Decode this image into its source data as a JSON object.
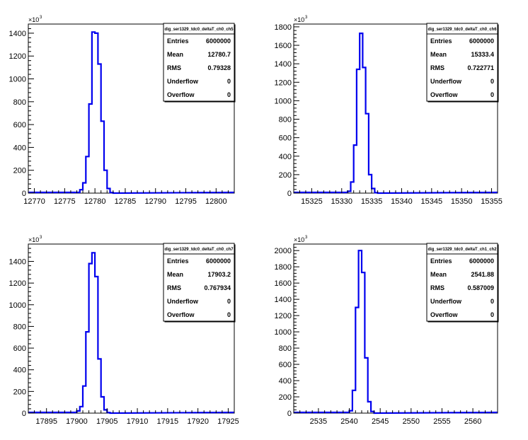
{
  "chart_data": [
    {
      "type": "histogram",
      "stats_title": "dig_ser1329_tdc0_deltaT_ch0_ch5",
      "stats": [
        {
          "key": "Entries",
          "value": "6000000"
        },
        {
          "key": "Mean",
          "value": "12780.7"
        },
        {
          "key": "RMS",
          "value": "0.79328"
        },
        {
          "key": "Underflow",
          "value": "0"
        },
        {
          "key": "Overflow",
          "value": "0"
        }
      ],
      "xlim": [
        12769,
        12803
      ],
      "ylim": [
        0,
        1480
      ],
      "x_ticks": [
        "12770",
        "12775",
        "12780",
        "12785",
        "12790",
        "12795",
        "12800"
      ],
      "y_ticks": [
        "0",
        "200",
        "400",
        "600",
        "800",
        "1000",
        "1200",
        "1400"
      ],
      "y_multiplier": "×10",
      "y_multiplier_exp": "3",
      "bin_width": 0.5,
      "bins": [
        {
          "x": 12777.5,
          "y": 30
        },
        {
          "x": 12778.0,
          "y": 90
        },
        {
          "x": 12778.5,
          "y": 320
        },
        {
          "x": 12779.0,
          "y": 780
        },
        {
          "x": 12779.5,
          "y": 1410
        },
        {
          "x": 12780.0,
          "y": 1400
        },
        {
          "x": 12780.5,
          "y": 1130
        },
        {
          "x": 12781.0,
          "y": 630
        },
        {
          "x": 12781.5,
          "y": 200
        },
        {
          "x": 12782.0,
          "y": 40
        },
        {
          "x": 12782.5,
          "y": 5
        }
      ]
    },
    {
      "type": "histogram",
      "stats_title": "dig_ser1329_tdc0_deltaT_ch0_ch6",
      "stats": [
        {
          "key": "Entries",
          "value": "6000000"
        },
        {
          "key": "Mean",
          "value": "15333.4"
        },
        {
          "key": "RMS",
          "value": "0.722771"
        },
        {
          "key": "Underflow",
          "value": "0"
        },
        {
          "key": "Overflow",
          "value": "0"
        }
      ],
      "xlim": [
        15322,
        15356
      ],
      "ylim": [
        0,
        1830
      ],
      "x_ticks": [
        "15325",
        "15330",
        "15335",
        "15340",
        "15345",
        "15350",
        "15355"
      ],
      "y_ticks": [
        "0",
        "200",
        "400",
        "600",
        "800",
        "1000",
        "1200",
        "1400",
        "1600",
        "1800"
      ],
      "y_multiplier": "×10",
      "y_multiplier_exp": "3",
      "bin_width": 0.5,
      "bins": [
        {
          "x": 15331.0,
          "y": 20
        },
        {
          "x": 15331.5,
          "y": 120
        },
        {
          "x": 15332.0,
          "y": 520
        },
        {
          "x": 15332.5,
          "y": 1340
        },
        {
          "x": 15333.0,
          "y": 1730
        },
        {
          "x": 15333.5,
          "y": 1360
        },
        {
          "x": 15334.0,
          "y": 860
        },
        {
          "x": 15334.5,
          "y": 200
        },
        {
          "x": 15335.0,
          "y": 50
        },
        {
          "x": 15335.5,
          "y": 5
        }
      ]
    },
    {
      "type": "histogram",
      "stats_title": "dig_ser1329_tdc0_deltaT_ch0_ch7",
      "stats": [
        {
          "key": "Entries",
          "value": "6000000"
        },
        {
          "key": "Mean",
          "value": "17903.2"
        },
        {
          "key": "RMS",
          "value": "0.767934"
        },
        {
          "key": "Underflow",
          "value": "0"
        },
        {
          "key": "Overflow",
          "value": "0"
        }
      ],
      "xlim": [
        17892,
        17926
      ],
      "ylim": [
        0,
        1560
      ],
      "x_ticks": [
        "17895",
        "17900",
        "17905",
        "17910",
        "17915",
        "17920",
        "17925"
      ],
      "y_ticks": [
        "0",
        "200",
        "400",
        "600",
        "800",
        "1000",
        "1200",
        "1400"
      ],
      "y_multiplier": "×10",
      "y_multiplier_exp": "3",
      "bin_width": 0.5,
      "bins": [
        {
          "x": 17900.0,
          "y": 20
        },
        {
          "x": 17900.5,
          "y": 60
        },
        {
          "x": 17901.0,
          "y": 250
        },
        {
          "x": 17901.5,
          "y": 750
        },
        {
          "x": 17902.0,
          "y": 1380
        },
        {
          "x": 17902.5,
          "y": 1480
        },
        {
          "x": 17903.0,
          "y": 1260
        },
        {
          "x": 17903.5,
          "y": 500
        },
        {
          "x": 17904.0,
          "y": 150
        },
        {
          "x": 17904.5,
          "y": 30
        },
        {
          "x": 17905.0,
          "y": 5
        }
      ]
    },
    {
      "type": "histogram",
      "stats_title": "dig_ser1329_tdc0_deltaT_ch1_ch2",
      "stats": [
        {
          "key": "Entries",
          "value": "6000000"
        },
        {
          "key": "Mean",
          "value": "2541.88"
        },
        {
          "key": "RMS",
          "value": "0.587009"
        },
        {
          "key": "Underflow",
          "value": "0"
        },
        {
          "key": "Overflow",
          "value": "0"
        }
      ],
      "xlim": [
        2531,
        2564
      ],
      "ylim": [
        0,
        2080
      ],
      "x_ticks": [
        "2535",
        "2540",
        "2545",
        "2550",
        "2555",
        "2560"
      ],
      "y_ticks": [
        "0",
        "200",
        "400",
        "600",
        "800",
        "1000",
        "1200",
        "1400",
        "1600",
        "1800",
        "2000"
      ],
      "y_multiplier": "×10",
      "y_multiplier_exp": "3",
      "bin_width": 0.5,
      "bins": [
        {
          "x": 2540.0,
          "y": 30
        },
        {
          "x": 2540.5,
          "y": 280
        },
        {
          "x": 2541.0,
          "y": 1300
        },
        {
          "x": 2541.5,
          "y": 2000
        },
        {
          "x": 2542.0,
          "y": 1730
        },
        {
          "x": 2542.5,
          "y": 680
        },
        {
          "x": 2543.0,
          "y": 140
        },
        {
          "x": 2543.5,
          "y": 20
        }
      ]
    }
  ]
}
